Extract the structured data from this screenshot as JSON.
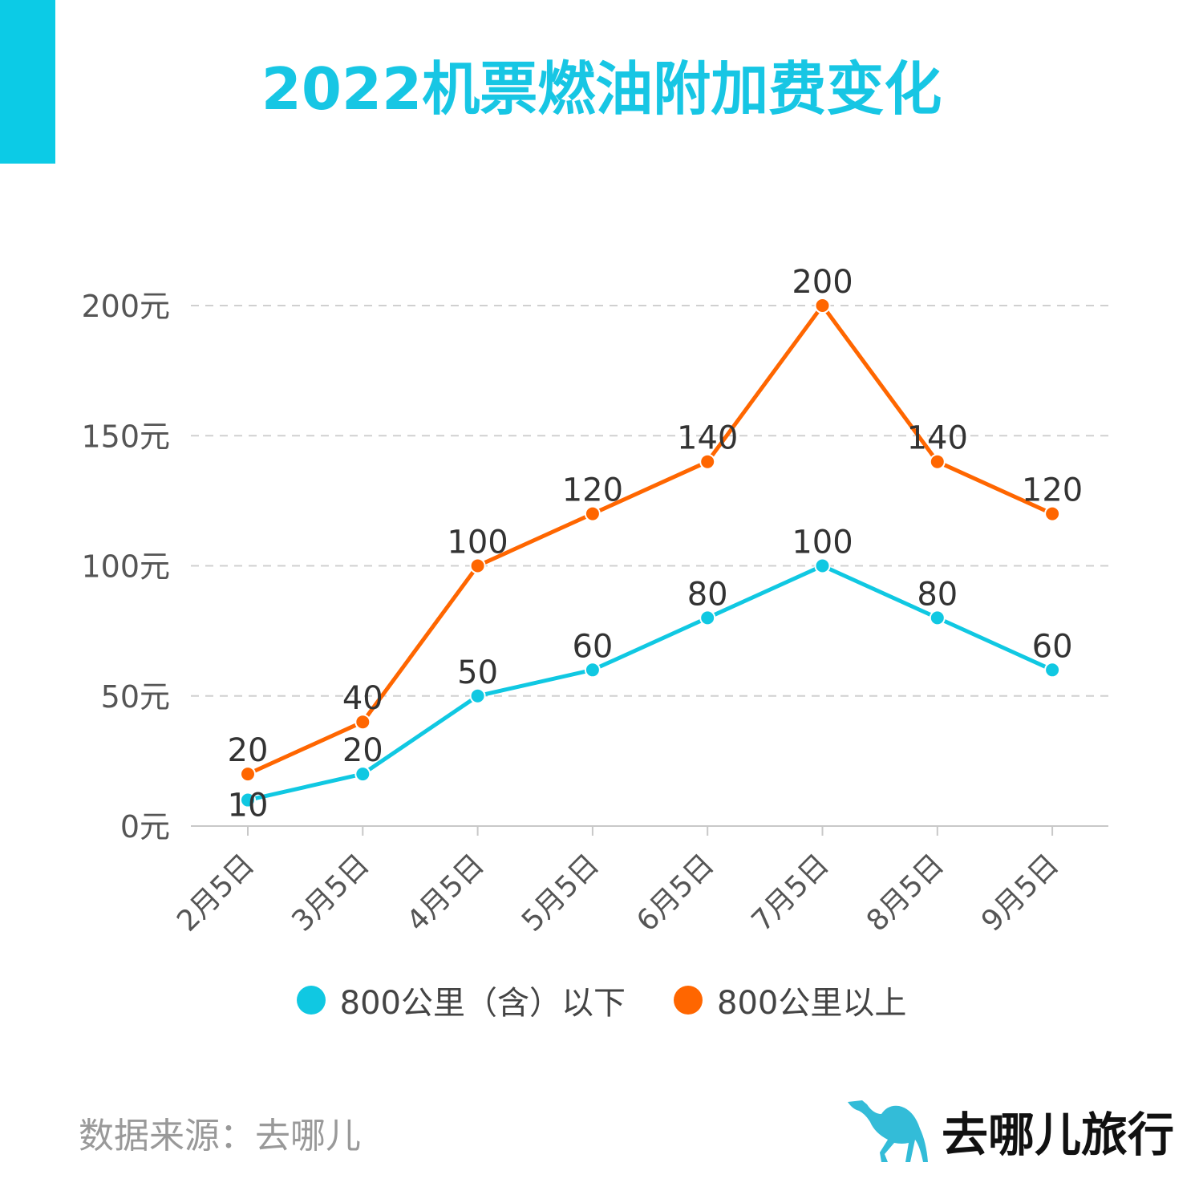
{
  "title": "2022机票燃油附加费变化",
  "colors": {
    "accent": "#0ccbe6",
    "series1": "#10c8e2",
    "series2": "#ff6600"
  },
  "chart_data": {
    "type": "line",
    "title": "2022机票燃油附加费变化",
    "categories": [
      "2月5日",
      "3月5日",
      "4月5日",
      "5月5日",
      "6月5日",
      "7月5日",
      "8月5日",
      "9月5日"
    ],
    "yticks": [
      "0元",
      "50元",
      "100元",
      "150元",
      "200元"
    ],
    "ylim": [
      0,
      200
    ],
    "grid": true,
    "legend_position": "bottom",
    "series": [
      {
        "name": "800公里（含）以下",
        "values": [
          10,
          20,
          50,
          60,
          80,
          100,
          80,
          60
        ]
      },
      {
        "name": "800公里以上",
        "values": [
          20,
          40,
          100,
          120,
          140,
          200,
          140,
          120
        ]
      }
    ]
  },
  "source": "数据来源：去哪儿",
  "logo_text": "去哪儿旅行"
}
